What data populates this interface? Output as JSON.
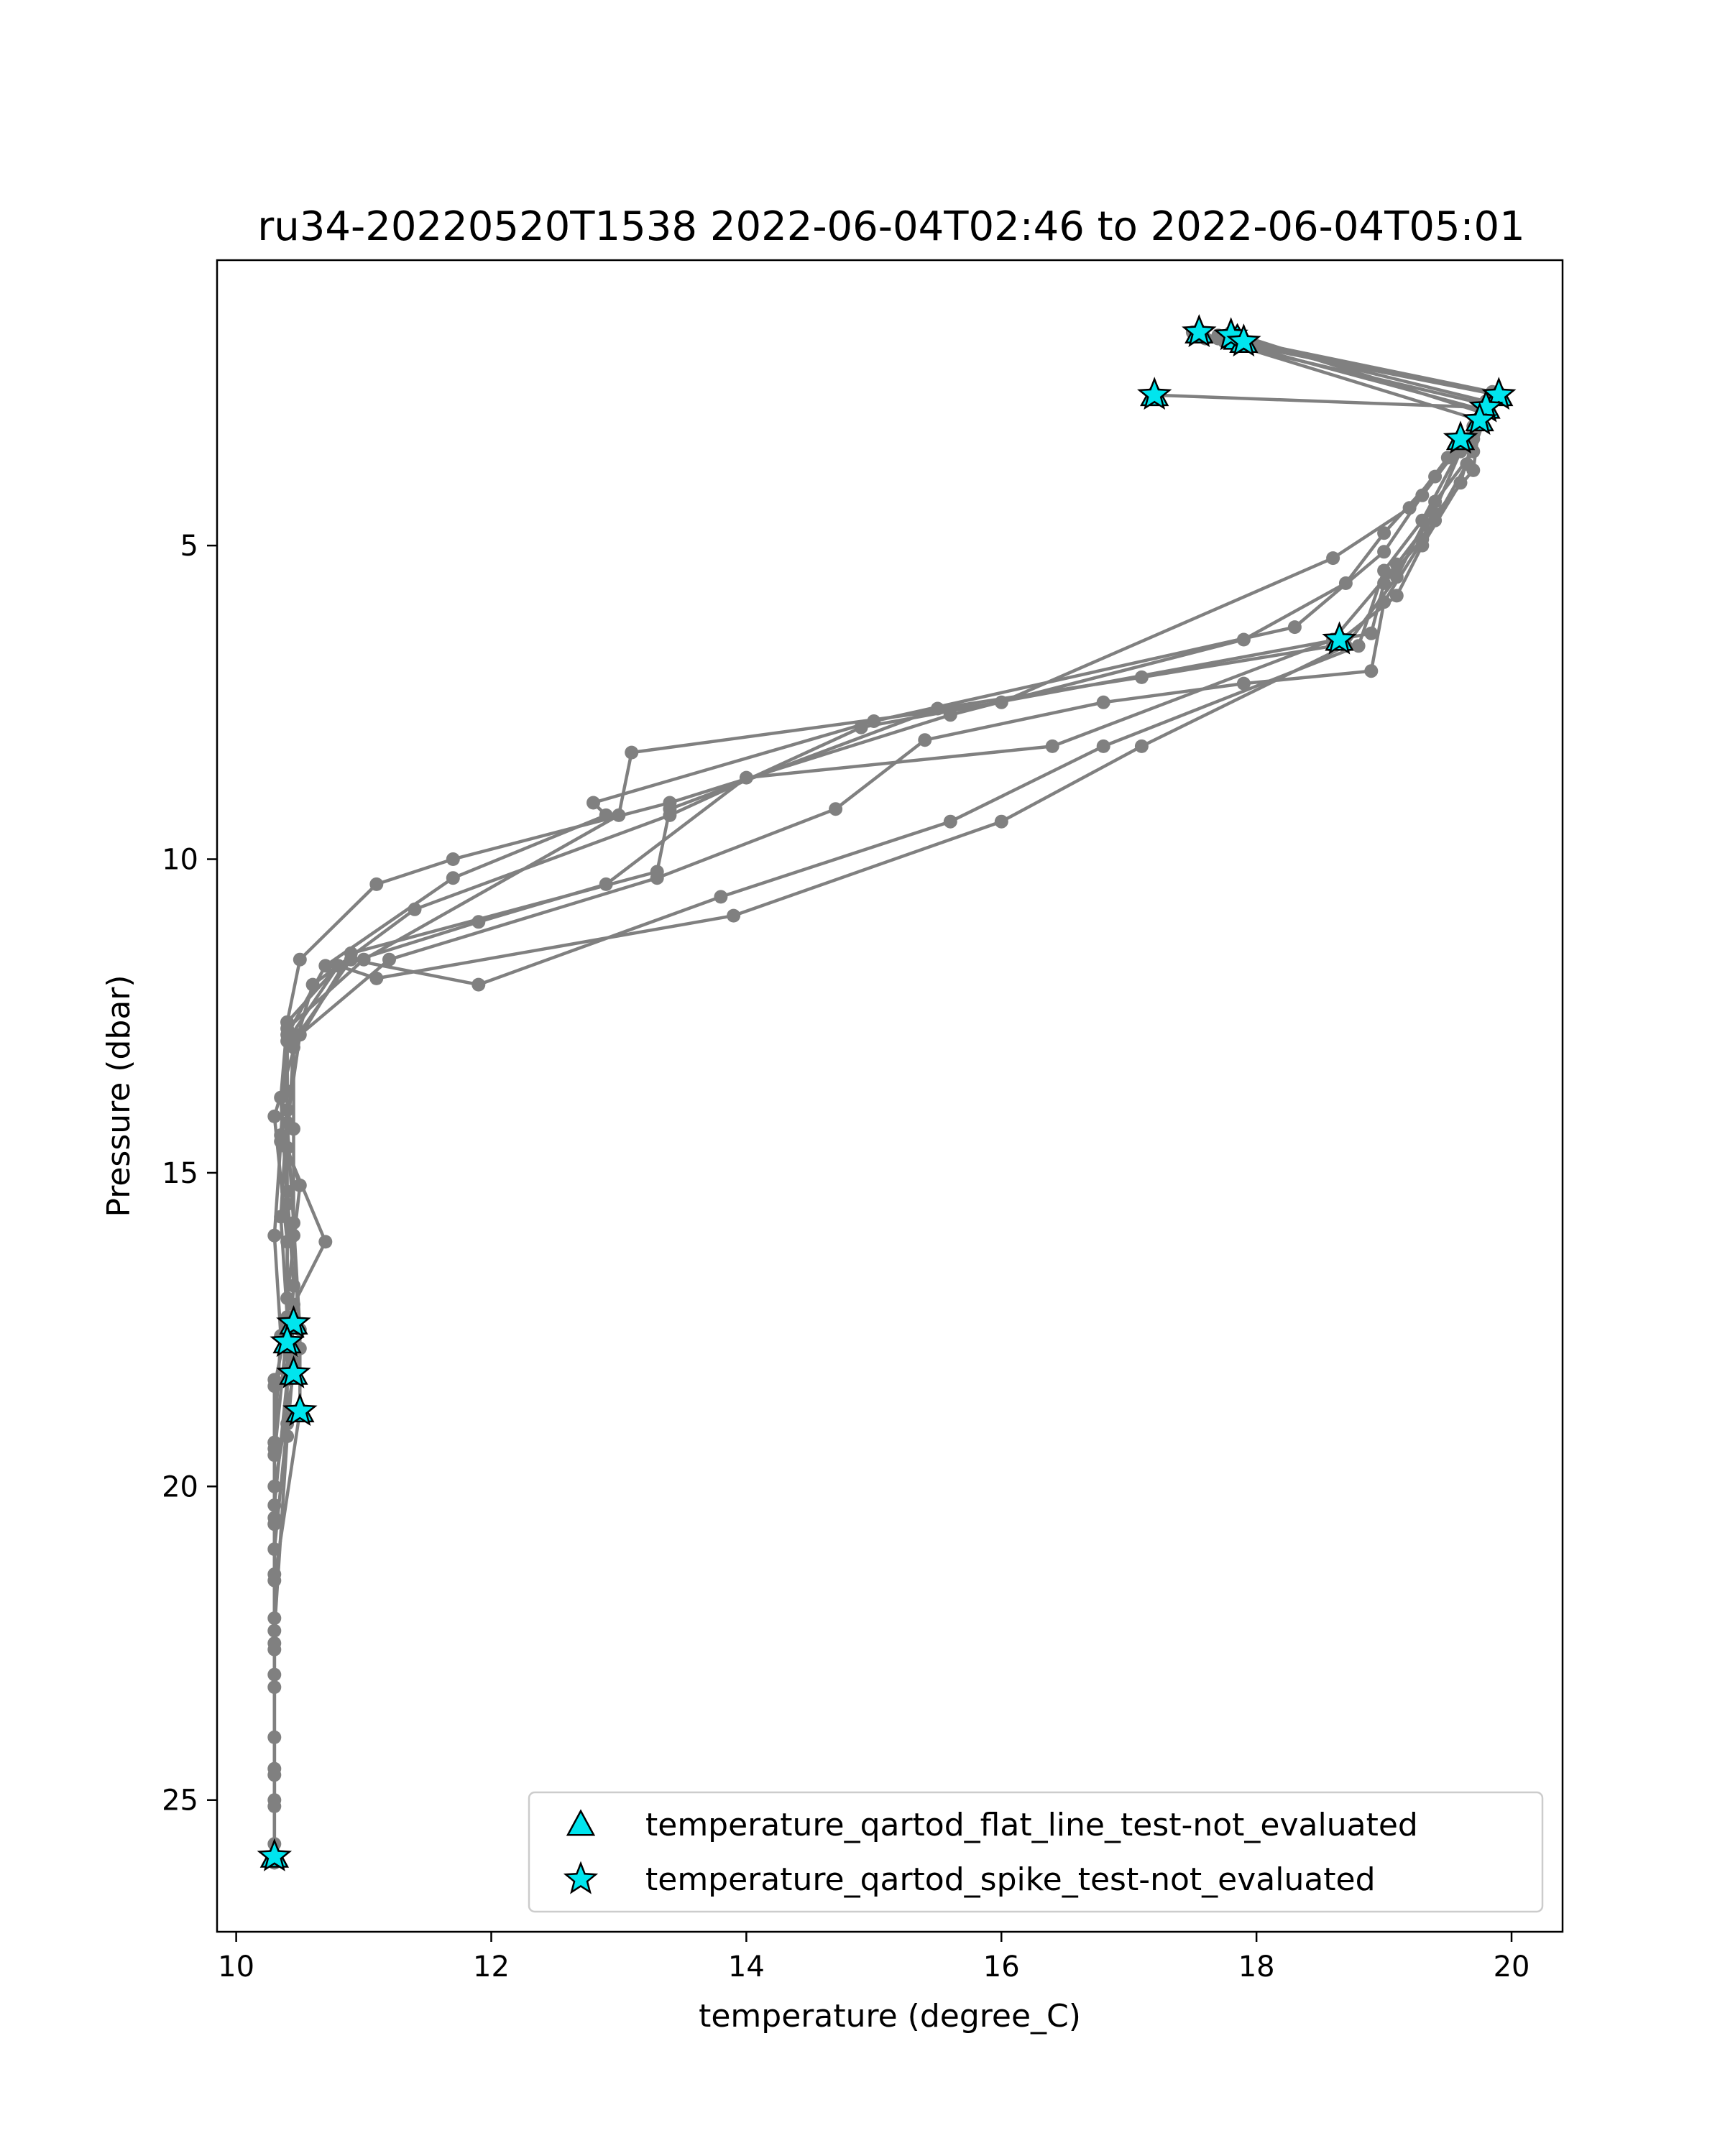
{
  "chart_data": {
    "type": "line",
    "title": "ru34-20220520T1538 2022-06-04T02:46 to 2022-06-04T05:01",
    "xlabel": "temperature (degree_C)",
    "ylabel": "Pressure (dbar)",
    "xlim": [
      9.85,
      20.4
    ],
    "ylim": [
      27.1,
      0.45
    ],
    "y_inverted": true,
    "xticks": [
      10,
      12,
      14,
      16,
      18,
      20
    ],
    "yticks": [
      5,
      10,
      15,
      20,
      25
    ],
    "grid": false,
    "legend_position": "lower-right",
    "line_color": "#808080",
    "marker_color": "#00e5ee",
    "legend": [
      {
        "label": "temperature_qartod_flat_line_test-not_evaluated",
        "marker": "triangle"
      },
      {
        "label": "temperature_qartod_spike_test-not_evaluated",
        "marker": "star"
      }
    ],
    "series": [
      {
        "values": [
          [
            17.2,
            2.6
          ],
          [
            19.8,
            2.8
          ],
          [
            19.7,
            3.1
          ],
          [
            19.5,
            3.6
          ],
          [
            19.2,
            4.4
          ],
          [
            18.6,
            5.2
          ],
          [
            16.0,
            7.5
          ],
          [
            13.1,
            8.3
          ],
          [
            13.0,
            9.3
          ],
          [
            11.0,
            11.6
          ],
          [
            10.4,
            12.7
          ],
          [
            10.35,
            14.5
          ],
          [
            10.3,
            16.0
          ],
          [
            10.35,
            17.6
          ],
          [
            10.3,
            19.3
          ],
          [
            10.3,
            20.6
          ],
          [
            10.3,
            22.5
          ],
          [
            10.3,
            24.5
          ],
          [
            10.3,
            25.9
          ]
        ]
      },
      {
        "values": [
          [
            17.5,
            1.6
          ],
          [
            19.9,
            2.6
          ],
          [
            19.8,
            2.9
          ],
          [
            19.6,
            3.5
          ],
          [
            19.3,
            4.9
          ],
          [
            19.0,
            5.6
          ],
          [
            18.9,
            6.4
          ],
          [
            14.9,
            7.9
          ],
          [
            13.4,
            9.3
          ],
          [
            11.4,
            10.8
          ],
          [
            10.6,
            12.0
          ],
          [
            10.3,
            14.1
          ],
          [
            10.4,
            16.1
          ],
          [
            10.4,
            17.5
          ],
          [
            10.3,
            19.5
          ],
          [
            10.3,
            21.4
          ],
          [
            10.3,
            23.2
          ],
          [
            10.3,
            25.1
          ]
        ]
      },
      {
        "values": [
          [
            17.8,
            1.7
          ],
          [
            19.8,
            2.7
          ],
          [
            19.7,
            3.2
          ],
          [
            19.4,
            3.9
          ],
          [
            19.0,
            4.8
          ],
          [
            18.7,
            5.6
          ],
          [
            17.9,
            6.5
          ],
          [
            15.6,
            7.7
          ],
          [
            13.4,
            9.1
          ],
          [
            11.7,
            10.0
          ],
          [
            11.1,
            10.4
          ],
          [
            10.5,
            11.6
          ],
          [
            10.4,
            12.6
          ],
          [
            10.4,
            13.7
          ],
          [
            10.4,
            15.3
          ],
          [
            10.45,
            16.8
          ],
          [
            10.4,
            18.3
          ],
          [
            10.3,
            20.3
          ],
          [
            10.3,
            22.1
          ],
          [
            10.3,
            24.0
          ],
          [
            10.3,
            25.7
          ]
        ]
      },
      {
        "values": [
          [
            17.9,
            1.8
          ],
          [
            19.9,
            2.6
          ],
          [
            19.6,
            3.4
          ],
          [
            19.3,
            4.2
          ],
          [
            19.0,
            5.1
          ],
          [
            18.3,
            6.3
          ],
          [
            15.0,
            7.8
          ],
          [
            12.8,
            9.1
          ],
          [
            12.9,
            9.3
          ],
          [
            11.7,
            10.3
          ],
          [
            10.7,
            11.7
          ],
          [
            10.4,
            12.8
          ],
          [
            10.4,
            14.0
          ],
          [
            10.35,
            15.7
          ],
          [
            10.4,
            17.3
          ],
          [
            10.4,
            19.0
          ],
          [
            10.3,
            21.0
          ],
          [
            10.3,
            23.0
          ],
          [
            10.3,
            25.0
          ]
        ]
      },
      {
        "values": [
          [
            17.7,
            1.65
          ],
          [
            19.85,
            2.55
          ],
          [
            19.7,
            3.3
          ],
          [
            19.6,
            4.0
          ],
          [
            19.3,
            5.0
          ],
          [
            19.1,
            5.8
          ],
          [
            18.6,
            6.6
          ],
          [
            17.1,
            7.1
          ],
          [
            15.5,
            7.6
          ],
          [
            13.4,
            9.2
          ],
          [
            13.3,
            10.2
          ],
          [
            10.9,
            11.5
          ],
          [
            10.45,
            13.0
          ],
          [
            10.4,
            14.6
          ],
          [
            10.5,
            15.2
          ],
          [
            10.4,
            17.0
          ],
          [
            10.45,
            18.2
          ],
          [
            10.3,
            20.0
          ]
        ]
      },
      {
        "values": [
          [
            17.6,
            1.7
          ],
          [
            19.8,
            2.75
          ],
          [
            19.65,
            3.7
          ],
          [
            19.4,
            4.6
          ],
          [
            19.0,
            5.9
          ],
          [
            18.9,
            7.0
          ],
          [
            17.9,
            7.2
          ],
          [
            16.8,
            7.5
          ],
          [
            15.4,
            8.1
          ],
          [
            14.7,
            9.2
          ],
          [
            13.3,
            10.3
          ],
          [
            11.2,
            11.6
          ],
          [
            10.5,
            12.8
          ],
          [
            10.4,
            14.2
          ],
          [
            10.45,
            15.8
          ],
          [
            10.5,
            17.5
          ],
          [
            10.5,
            18.8
          ],
          [
            10.3,
            21.5
          ]
        ]
      },
      {
        "values": [
          [
            17.75,
            1.75
          ],
          [
            19.75,
            3.0
          ],
          [
            19.7,
            3.8
          ],
          [
            19.4,
            4.5
          ],
          [
            19.1,
            5.3
          ],
          [
            18.6,
            6.5
          ],
          [
            16.4,
            8.2
          ],
          [
            14.0,
            8.7
          ],
          [
            12.9,
            10.4
          ],
          [
            11.9,
            11.0
          ],
          [
            10.8,
            11.7
          ],
          [
            10.4,
            12.9
          ],
          [
            10.35,
            14.4
          ],
          [
            10.7,
            16.1
          ],
          [
            10.45,
            17.1
          ],
          [
            10.4,
            17.6
          ],
          [
            10.45,
            18.0
          ],
          [
            10.4,
            19.2
          ],
          [
            10.3,
            22.3
          ]
        ]
      },
      {
        "values": [
          [
            17.8,
            1.6
          ],
          [
            19.8,
            2.9
          ],
          [
            19.7,
            3.5
          ],
          [
            19.4,
            4.3
          ],
          [
            19.1,
            5.5
          ],
          [
            18.7,
            6.6
          ],
          [
            17.1,
            8.2
          ],
          [
            16.0,
            9.4
          ],
          [
            13.9,
            10.9
          ],
          [
            11.1,
            11.9
          ],
          [
            10.8,
            11.7
          ],
          [
            10.4,
            12.6
          ],
          [
            10.35,
            13.8
          ],
          [
            10.4,
            15.5
          ],
          [
            10.4,
            17.4
          ],
          [
            10.3,
            18.4
          ],
          [
            10.3,
            19.4
          ],
          [
            10.3,
            20.5
          ]
        ]
      },
      {
        "values": [
          [
            17.7,
            1.7
          ],
          [
            19.8,
            2.85
          ],
          [
            19.6,
            3.45
          ],
          [
            19.3,
            4.6
          ],
          [
            19.0,
            5.4
          ],
          [
            18.8,
            6.6
          ],
          [
            16.8,
            8.2
          ],
          [
            15.6,
            9.4
          ],
          [
            13.8,
            10.6
          ],
          [
            11.9,
            12.0
          ],
          [
            10.9,
            11.6
          ],
          [
            10.45,
            12.9
          ],
          [
            10.45,
            14.3
          ],
          [
            10.45,
            16.0
          ],
          [
            10.5,
            17.8
          ],
          [
            10.3,
            18.3
          ],
          [
            10.3,
            19.3
          ],
          [
            10.3,
            20.6
          ],
          [
            10.3,
            22.6
          ],
          [
            10.3,
            24.6
          ],
          [
            10.3,
            26.0
          ]
        ]
      }
    ],
    "triangle_markers": [
      [
        17.2,
        2.6
      ],
      [
        17.55,
        1.6
      ],
      [
        17.85,
        1.7
      ],
      [
        17.9,
        1.75
      ],
      [
        19.9,
        2.6
      ],
      [
        19.8,
        2.8
      ],
      [
        19.75,
        3.0
      ],
      [
        19.6,
        3.3
      ],
      [
        18.65,
        6.5
      ],
      [
        10.45,
        17.4
      ],
      [
        10.4,
        17.7
      ],
      [
        10.45,
        18.2
      ],
      [
        10.5,
        18.8
      ],
      [
        10.3,
        25.9
      ]
    ],
    "star_markers": [
      [
        17.2,
        2.6
      ],
      [
        17.55,
        1.6
      ],
      [
        17.8,
        1.65
      ],
      [
        17.9,
        1.75
      ],
      [
        19.9,
        2.6
      ],
      [
        19.8,
        2.8
      ],
      [
        19.75,
        3.0
      ],
      [
        19.6,
        3.3
      ],
      [
        18.65,
        6.5
      ],
      [
        10.45,
        17.4
      ],
      [
        10.4,
        17.7
      ],
      [
        10.45,
        18.2
      ],
      [
        10.5,
        18.8
      ],
      [
        10.3,
        25.9
      ]
    ]
  }
}
